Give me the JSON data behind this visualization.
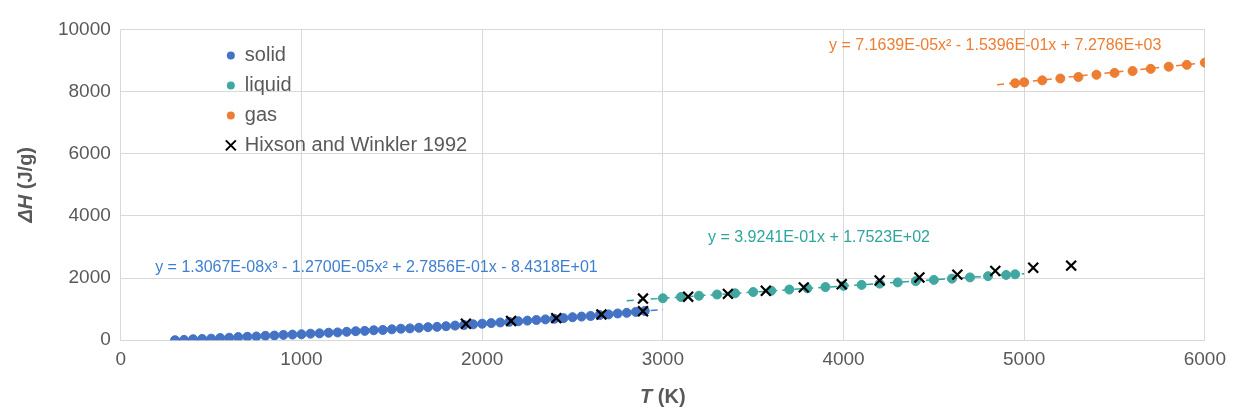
{
  "chart_data": {
    "type": "scatter",
    "xlabel": "T (K)",
    "ylabel": "ΔH (J/g)",
    "xlim": [
      0,
      6000
    ],
    "xticks": [
      0,
      1000,
      2000,
      3000,
      4000,
      5000,
      6000
    ],
    "ylim": [
      0,
      10000
    ],
    "yticks": [
      0,
      2000,
      4000,
      6000,
      8000,
      10000
    ],
    "grid": true,
    "legend": "top left",
    "annotations": [
      "y = 1.3067E-08x³ - 1.2700E-05x² + 2.7856E-01x - 8.4318E+01",
      "y = 3.9241E-01x + 1.7523E+02",
      "y = 7.1639E-05x² - 1.5396E-01x + 7.2786E+03"
    ],
    "series": [
      {
        "type": "line",
        "color": "#3f7fd0",
        "marker": "none",
        "line_style": "dashed",
        "x": [
          2800,
          3000
        ],
        "values": [
          880,
          990
        ]
      },
      {
        "type": "line",
        "color": "#2ca59c",
        "marker": "none",
        "line_style": "dashed",
        "x": [
          2800,
          5000
        ],
        "values": [
          1270,
          2140
        ]
      },
      {
        "type": "line",
        "color": "#ed7d31",
        "marker": "none",
        "line_style": "dashed",
        "x": [
          4850,
          6000
        ],
        "values": [
          8220,
          8930
        ]
      },
      {
        "name": "solid",
        "color": "#4472c4",
        "marker": "circle",
        "x": [
          300,
          350,
          400,
          450,
          500,
          550,
          600,
          650,
          700,
          750,
          800,
          850,
          900,
          950,
          1000,
          1050,
          1100,
          1150,
          1200,
          1250,
          1300,
          1350,
          1400,
          1450,
          1500,
          1550,
          1600,
          1650,
          1700,
          1750,
          1800,
          1850,
          1900,
          1950,
          2000,
          2050,
          2100,
          2150,
          2200,
          2250,
          2300,
          2350,
          2400,
          2450,
          2500,
          2550,
          2600,
          2650,
          2700,
          2750,
          2800,
          2850,
          2900
        ],
        "values": [
          0,
          10,
          30,
          40,
          50,
          70,
          80,
          100,
          110,
          120,
          140,
          150,
          170,
          180,
          190,
          210,
          220,
          240,
          250,
          270,
          290,
          300,
          320,
          330,
          350,
          370,
          380,
          400,
          420,
          430,
          450,
          470,
          490,
          510,
          530,
          550,
          570,
          590,
          610,
          630,
          650,
          670,
          690,
          710,
          740,
          760,
          780,
          810,
          830,
          860,
          880,
          910,
          940
        ]
      },
      {
        "name": "liquid",
        "color": "#40a8a0",
        "marker": "circle",
        "x": [
          3000,
          3100,
          3200,
          3300,
          3400,
          3500,
          3600,
          3700,
          3800,
          3900,
          4000,
          4100,
          4200,
          4300,
          4400,
          4500,
          4600,
          4700,
          4800,
          4900,
          4950
        ],
        "values": [
          1350,
          1390,
          1430,
          1470,
          1510,
          1550,
          1590,
          1630,
          1670,
          1710,
          1750,
          1780,
          1820,
          1860,
          1900,
          1940,
          1980,
          2020,
          2060,
          2100,
          2120
        ]
      },
      {
        "name": "gas",
        "color": "#ed7d31",
        "marker": "circle",
        "x": [
          4950,
          5000,
          5100,
          5200,
          5300,
          5400,
          5500,
          5600,
          5700,
          5800,
          5900,
          6000
        ],
        "values": [
          8270,
          8300,
          8360,
          8420,
          8470,
          8540,
          8600,
          8660,
          8730,
          8800,
          8860,
          8930
        ]
      },
      {
        "name": "Hixson and Winkler 1992",
        "color": "#000000",
        "marker": "cross",
        "x": [
          1910,
          2160,
          2410,
          2660,
          2890,
          2890,
          3140,
          3360,
          3570,
          3780,
          3990,
          4200,
          4420,
          4630,
          4840,
          5050,
          5260
        ],
        "values": [
          530,
          620,
          710,
          830,
          930,
          1340,
          1400,
          1490,
          1590,
          1700,
          1800,
          1920,
          2020,
          2110,
          2230,
          2330,
          2400
        ]
      }
    ]
  }
}
